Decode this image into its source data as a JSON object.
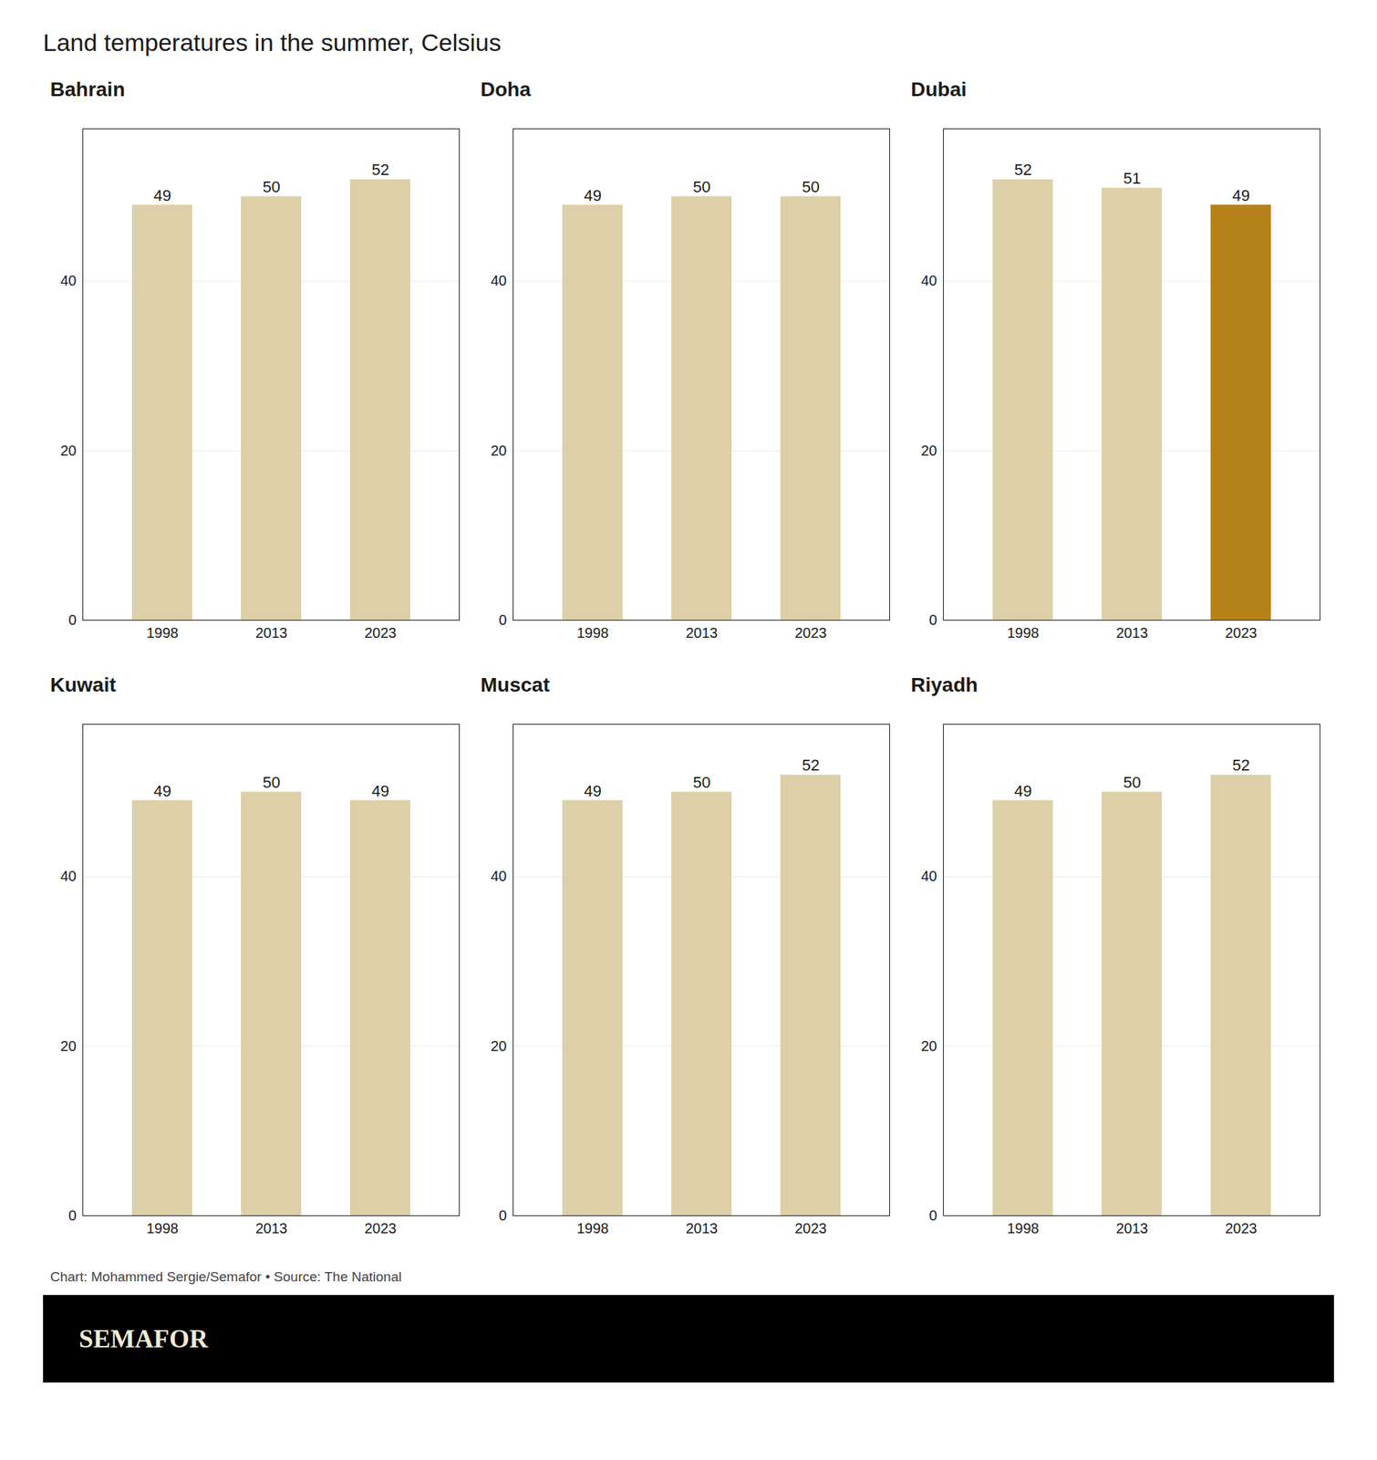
{
  "title": "Land temperatures in the summer, Celsius",
  "annotations": [
    "Chart: Mohammed Sergie/Semafor • Source: The National",
    "SEMAFOR"
  ],
  "chart_data": [
    {
      "type": "bar",
      "title": "Bahrain",
      "categories": [
        "1998",
        "2013",
        "2023"
      ],
      "values": [
        49,
        50,
        52
      ],
      "colors": [
        "#ddd0a8",
        "#ddd0a8",
        "#ddd0a8"
      ],
      "ylim": [
        0,
        58
      ],
      "yticks": [
        0,
        20,
        40
      ],
      "grid": true,
      "data_labels": true
    },
    {
      "type": "bar",
      "title": "Doha",
      "categories": [
        "1998",
        "2013",
        "2023"
      ],
      "values": [
        49,
        50,
        50
      ],
      "colors": [
        "#ddd0a8",
        "#ddd0a8",
        "#ddd0a8"
      ],
      "ylim": [
        0,
        58
      ],
      "yticks": [
        0,
        20,
        40
      ],
      "grid": true,
      "data_labels": true
    },
    {
      "type": "bar",
      "title": "Dubai",
      "categories": [
        "1998",
        "2013",
        "2023"
      ],
      "values": [
        52,
        51,
        49
      ],
      "colors": [
        "#ddd0a8",
        "#ddd0a8",
        "#b5821a"
      ],
      "ylim": [
        0,
        58
      ],
      "yticks": [
        0,
        20,
        40
      ],
      "grid": true,
      "data_labels": true
    },
    {
      "type": "bar",
      "title": "Kuwait",
      "categories": [
        "1998",
        "2013",
        "2023"
      ],
      "values": [
        49,
        50,
        49
      ],
      "colors": [
        "#ddd0a8",
        "#ddd0a8",
        "#ddd0a8"
      ],
      "ylim": [
        0,
        58
      ],
      "yticks": [
        0,
        20,
        40
      ],
      "grid": true,
      "data_labels": true
    },
    {
      "type": "bar",
      "title": "Muscat",
      "categories": [
        "1998",
        "2013",
        "2023"
      ],
      "values": [
        49,
        50,
        52
      ],
      "colors": [
        "#ddd0a8",
        "#ddd0a8",
        "#ddd0a8"
      ],
      "ylim": [
        0,
        58
      ],
      "yticks": [
        0,
        20,
        40
      ],
      "grid": true,
      "data_labels": true
    },
    {
      "type": "bar",
      "title": "Riyadh",
      "categories": [
        "1998",
        "2013",
        "2023"
      ],
      "values": [
        49,
        50,
        52
      ],
      "colors": [
        "#ddd0a8",
        "#ddd0a8",
        "#ddd0a8"
      ],
      "ylim": [
        0,
        58
      ],
      "yticks": [
        0,
        20,
        40
      ],
      "grid": true,
      "data_labels": true
    }
  ]
}
